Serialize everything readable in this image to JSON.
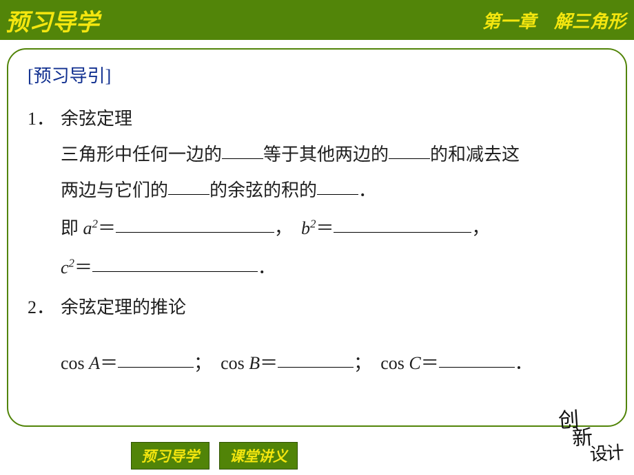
{
  "colors": {
    "header_bg": "#528509",
    "header_text": "#f4e60f",
    "content_border": "#518408",
    "tab_bg": "#518408",
    "tab_border": "#2e5200",
    "tab_text": "#f4e60f",
    "section_title": "#0f2e8f",
    "body_text": "#202020"
  },
  "header": {
    "left": "预习导学",
    "right": "第一章　解三角形"
  },
  "section_title": "[预习导引]",
  "items": [
    {
      "num": "1．",
      "title": "余弦定理",
      "lines": [
        {
          "type": "text_with_blanks",
          "segments": [
            "三角形中任何一边的",
            "BLANK_60",
            "等于其他两边的",
            "BLANK_60",
            "的和减去这"
          ]
        },
        {
          "type": "text_with_blanks",
          "segments": [
            "两边与它们的",
            "BLANK_60",
            "的余弦的积的",
            "BLANK_60",
            "．"
          ]
        },
        {
          "type": "formula",
          "parts": [
            {
              "pre": "即 ",
              "var": "a",
              "after": "＝",
              "blank": 230,
              "tail": "，"
            },
            {
              "pre": "",
              "var": "b",
              "after": "＝",
              "blank": 200,
              "tail": "，"
            }
          ]
        },
        {
          "type": "formula",
          "parts": [
            {
              "pre": "",
              "var": "c",
              "after": "＝",
              "blank": 240,
              "tail": "．"
            }
          ]
        }
      ]
    },
    {
      "num": "2．",
      "title": "余弦定理的推论",
      "cos_line": {
        "entries": [
          {
            "label": "cos ",
            "var": "A",
            "eq": "＝",
            "blank": 110,
            "tail": "；　"
          },
          {
            "label": "cos ",
            "var": "B",
            "eq": "＝",
            "blank": 110,
            "tail": "；　"
          },
          {
            "label": "cos ",
            "var": "C",
            "eq": "＝",
            "blank": 110,
            "tail": "．"
          }
        ]
      }
    }
  ],
  "footer_tabs": [
    "预习导学",
    "课堂讲义"
  ],
  "logo_lines": [
    "创",
    "新",
    "设计"
  ]
}
